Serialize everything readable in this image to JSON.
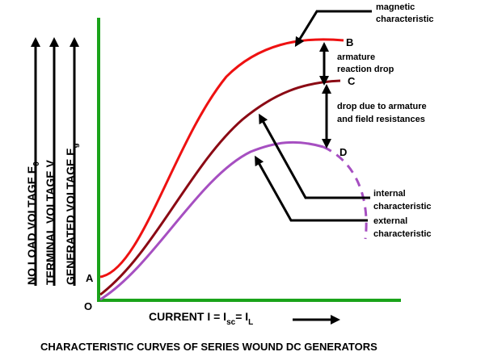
{
  "axes": {
    "y_labels": {
      "e0": {
        "main": "NO LOAD VOLTAGE E",
        "sub": "0"
      },
      "v": {
        "main": "TERMINAL VOLTAGE V"
      },
      "eg": {
        "main": "GENERATED VOLTAGE E",
        "sub": "g"
      }
    },
    "x_label": {
      "pre": "CURRENT I = I",
      "sub1": "sc",
      "mid": "= I",
      "sub2": "L"
    }
  },
  "points": {
    "origin": "O",
    "a": "A",
    "b": "B",
    "c": "C",
    "d": "D"
  },
  "annotations": {
    "magnetic": [
      "magnetic",
      "characteristic"
    ],
    "armature_drop": [
      "armature",
      "reaction drop"
    ],
    "resistance_drop": [
      "drop due to armature",
      "and field resistances"
    ],
    "internal": [
      "internal",
      "characteristic"
    ],
    "external": [
      "external",
      "characteristic"
    ]
  },
  "caption": "CHARACTERISTIC CURVES OF SERIES WOUND DC GENERATORS",
  "colors": {
    "axis": "#1aa31a",
    "magnetic": "#ee1111",
    "internal": "#8b0a14",
    "external": "#a64fc1",
    "ink": "#000000"
  }
}
